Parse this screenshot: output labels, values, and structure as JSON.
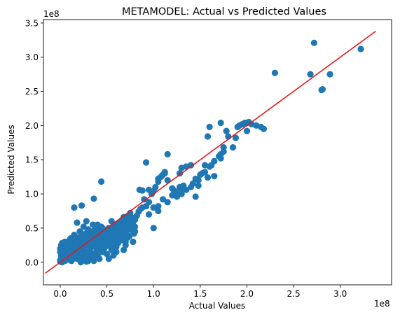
{
  "chart_data": {
    "type": "scatter",
    "title": "METAMODEL: Actual vs Predicted Values",
    "xlabel": "Actual Values",
    "ylabel": "Predicted Values",
    "x_offset_label": "1e8",
    "y_offset_label": "1e8",
    "xlim": [
      -0.18,
      3.55
    ],
    "ylim": [
      -0.33,
      3.55
    ],
    "x_ticks": [
      0.0,
      0.5,
      1.0,
      1.5,
      2.0,
      2.5,
      3.0
    ],
    "x_tick_labels": [
      "0.0",
      "0.5",
      "1.0",
      "1.5",
      "2.0",
      "2.5",
      "3.0"
    ],
    "y_ticks": [
      0.0,
      0.5,
      1.0,
      1.5,
      2.0,
      2.5,
      3.0,
      3.5
    ],
    "y_tick_labels": [
      "0.0",
      "0.5",
      "1.0",
      "1.5",
      "2.0",
      "2.5",
      "3.0",
      "3.5"
    ],
    "colors": {
      "points": "#1f77b4",
      "line": "#e31a1c"
    },
    "reference_line": {
      "x": [
        -0.16,
        3.38
      ],
      "y": [
        -0.16,
        3.38
      ]
    },
    "points": [
      [
        0.0,
        0.01
      ],
      [
        0.01,
        0.02
      ],
      [
        0.02,
        0.0
      ],
      [
        0.03,
        0.05
      ],
      [
        0.01,
        0.1
      ],
      [
        0.02,
        0.15
      ],
      [
        0.02,
        0.22
      ],
      [
        0.03,
        0.18
      ],
      [
        0.04,
        0.28
      ],
      [
        0.05,
        0.12
      ],
      [
        0.05,
        0.02
      ],
      [
        0.06,
        0.2
      ],
      [
        0.07,
        0.08
      ],
      [
        0.08,
        0.25
      ],
      [
        0.08,
        0.3
      ],
      [
        0.09,
        0.14
      ],
      [
        0.1,
        0.05
      ],
      [
        0.1,
        0.22
      ],
      [
        0.11,
        0.35
      ],
      [
        0.12,
        0.18
      ],
      [
        0.12,
        0.02
      ],
      [
        0.13,
        0.28
      ],
      [
        0.14,
        0.1
      ],
      [
        0.15,
        0.2
      ],
      [
        0.15,
        0.4
      ],
      [
        0.16,
        0.15
      ],
      [
        0.17,
        0.3
      ],
      [
        0.18,
        0.05
      ],
      [
        0.18,
        0.25
      ],
      [
        0.19,
        0.12
      ],
      [
        0.2,
        0.32
      ],
      [
        0.2,
        0.2
      ],
      [
        0.21,
        0.45
      ],
      [
        0.22,
        0.28
      ],
      [
        0.22,
        0.08
      ],
      [
        0.23,
        0.38
      ],
      [
        0.24,
        0.18
      ],
      [
        0.25,
        0.52
      ],
      [
        0.25,
        0.3
      ],
      [
        0.26,
        0.1
      ],
      [
        0.27,
        0.42
      ],
      [
        0.28,
        0.24
      ],
      [
        0.28,
        0.35
      ],
      [
        0.29,
        0.15
      ],
      [
        0.3,
        0.48
      ],
      [
        0.3,
        0.28
      ],
      [
        0.31,
        0.05
      ],
      [
        0.32,
        0.38
      ],
      [
        0.33,
        0.22
      ],
      [
        0.34,
        0.45
      ],
      [
        0.34,
        0.3
      ],
      [
        0.35,
        0.12
      ],
      [
        0.36,
        0.35
      ],
      [
        0.37,
        0.25
      ],
      [
        0.38,
        0.42
      ],
      [
        0.38,
        0.32
      ],
      [
        0.39,
        0.18
      ],
      [
        0.4,
        0.38
      ],
      [
        0.41,
        0.28
      ],
      [
        0.42,
        0.45
      ],
      [
        0.43,
        0.35
      ],
      [
        0.44,
        0.22
      ],
      [
        0.45,
        0.4
      ],
      [
        0.46,
        0.3
      ],
      [
        0.47,
        0.48
      ],
      [
        0.48,
        0.38
      ],
      [
        0.49,
        0.25
      ],
      [
        0.5,
        0.42
      ],
      [
        0.51,
        0.32
      ],
      [
        0.52,
        0.5
      ],
      [
        0.53,
        0.4
      ],
      [
        0.54,
        0.28
      ],
      [
        0.55,
        0.45
      ],
      [
        0.56,
        0.35
      ],
      [
        0.57,
        0.52
      ],
      [
        0.58,
        0.42
      ],
      [
        0.59,
        0.3
      ],
      [
        0.6,
        0.48
      ],
      [
        0.61,
        0.38
      ],
      [
        0.62,
        0.55
      ],
      [
        0.63,
        0.45
      ],
      [
        0.64,
        0.32
      ],
      [
        0.65,
        0.5
      ],
      [
        0.66,
        0.4
      ],
      [
        0.67,
        0.58
      ],
      [
        0.68,
        0.48
      ],
      [
        0.69,
        0.35
      ],
      [
        0.7,
        0.55
      ],
      [
        0.71,
        0.45
      ],
      [
        0.72,
        0.6
      ],
      [
        0.73,
        0.5
      ],
      [
        0.74,
        0.38
      ],
      [
        0.75,
        0.58
      ],
      [
        0.76,
        0.48
      ],
      [
        0.77,
        0.65
      ],
      [
        0.78,
        0.55
      ],
      [
        0.79,
        0.42
      ],
      [
        0.8,
        0.62
      ],
      [
        0.01,
        0.05
      ],
      [
        0.02,
        0.08
      ],
      [
        0.03,
        0.12
      ],
      [
        0.04,
        0.06
      ],
      [
        0.05,
        0.16
      ],
      [
        0.06,
        0.1
      ],
      [
        0.07,
        0.22
      ],
      [
        0.08,
        0.04
      ],
      [
        0.09,
        0.18
      ],
      [
        0.1,
        0.12
      ],
      [
        0.11,
        0.26
      ],
      [
        0.12,
        0.08
      ],
      [
        0.13,
        0.2
      ],
      [
        0.14,
        0.32
      ],
      [
        0.15,
        0.06
      ],
      [
        0.16,
        0.24
      ],
      [
        0.17,
        0.14
      ],
      [
        0.18,
        0.36
      ],
      [
        0.19,
        0.22
      ],
      [
        0.2,
        0.08
      ],
      [
        0.21,
        0.3
      ],
      [
        0.22,
        0.18
      ],
      [
        0.0,
        0.03
      ],
      [
        0.01,
        0.13
      ],
      [
        0.02,
        0.05
      ],
      [
        0.03,
        0.24
      ],
      [
        0.04,
        0.16
      ],
      [
        0.05,
        0.06
      ],
      [
        0.06,
        0.28
      ],
      [
        0.07,
        0.16
      ],
      [
        0.08,
        0.1
      ],
      [
        0.09,
        0.26
      ],
      [
        0.1,
        0.3
      ],
      [
        0.11,
        0.16
      ],
      [
        0.13,
        0.12
      ],
      [
        0.14,
        0.24
      ],
      [
        0.16,
        0.34
      ],
      [
        0.17,
        0.22
      ],
      [
        0.19,
        0.3
      ],
      [
        0.21,
        0.16
      ],
      [
        0.23,
        0.26
      ],
      [
        0.24,
        0.36
      ],
      [
        0.26,
        0.22
      ],
      [
        0.27,
        0.32
      ],
      [
        0.29,
        0.26
      ],
      [
        0.31,
        0.4
      ],
      [
        0.32,
        0.3
      ],
      [
        0.33,
        0.14
      ],
      [
        0.35,
        0.28
      ],
      [
        0.36,
        0.46
      ],
      [
        0.37,
        0.36
      ],
      [
        0.39,
        0.26
      ],
      [
        0.4,
        0.5
      ],
      [
        0.41,
        0.2
      ],
      [
        0.43,
        0.28
      ],
      [
        0.44,
        0.52
      ],
      [
        0.45,
        0.32
      ],
      [
        0.46,
        0.4
      ],
      [
        0.47,
        0.2
      ],
      [
        0.48,
        0.3
      ],
      [
        0.5,
        0.36
      ],
      [
        0.51,
        0.24
      ],
      [
        0.52,
        0.44
      ],
      [
        0.53,
        0.32
      ],
      [
        0.55,
        0.38
      ],
      [
        0.56,
        0.26
      ],
      [
        0.57,
        0.44
      ],
      [
        0.58,
        0.34
      ],
      [
        0.6,
        0.4
      ],
      [
        0.61,
        0.56
      ],
      [
        0.63,
        0.52
      ],
      [
        0.64,
        0.42
      ],
      [
        0.65,
        0.6
      ],
      [
        0.66,
        0.46
      ],
      [
        0.68,
        0.66
      ],
      [
        0.69,
        0.52
      ],
      [
        0.7,
        0.44
      ],
      [
        0.71,
        0.62
      ],
      [
        0.73,
        0.68
      ],
      [
        0.74,
        0.56
      ],
      [
        0.75,
        0.72
      ],
      [
        0.76,
        0.6
      ],
      [
        0.15,
        0.8
      ],
      [
        0.23,
        0.83
      ],
      [
        0.36,
        0.93
      ],
      [
        0.44,
        1.18
      ],
      [
        0.18,
        0.58
      ],
      [
        0.28,
        0.6
      ],
      [
        0.35,
        0.55
      ],
      [
        0.4,
        0.55
      ],
      [
        0.45,
        0.5
      ],
      [
        0.55,
        0.6
      ],
      [
        0.25,
        0.05
      ],
      [
        0.3,
        0.08
      ],
      [
        0.35,
        0.06
      ],
      [
        0.4,
        0.1
      ],
      [
        0.45,
        0.15
      ],
      [
        0.5,
        0.12
      ],
      [
        0.55,
        0.18
      ],
      [
        0.6,
        0.22
      ],
      [
        0.62,
        0.28
      ],
      [
        0.65,
        0.32
      ],
      [
        0.7,
        0.3
      ],
      [
        0.72,
        0.36
      ],
      [
        0.75,
        0.5
      ],
      [
        0.78,
        0.45
      ],
      [
        0.8,
        0.52
      ],
      [
        0.82,
        0.68
      ],
      [
        0.84,
        0.74
      ],
      [
        0.86,
        0.78
      ],
      [
        0.88,
        0.8
      ],
      [
        0.9,
        0.92
      ],
      [
        0.92,
        0.82
      ],
      [
        0.95,
        0.88
      ],
      [
        0.98,
        1.0
      ],
      [
        1.0,
        1.04
      ],
      [
        1.02,
        1.1
      ],
      [
        1.05,
        1.18
      ],
      [
        1.08,
        1.25
      ],
      [
        1.1,
        1.28
      ],
      [
        1.12,
        1.3
      ],
      [
        1.15,
        1.2
      ],
      [
        1.2,
        1.08
      ],
      [
        1.22,
        1.05
      ],
      [
        1.25,
        1.02
      ],
      [
        1.28,
        1.1
      ],
      [
        1.3,
        1.08
      ],
      [
        1.32,
        1.12
      ],
      [
        1.35,
        1.06
      ],
      [
        1.4,
        1.1
      ],
      [
        1.42,
        1.15
      ],
      [
        1.45,
        1.22
      ],
      [
        1.48,
        1.2
      ],
      [
        1.5,
        1.28
      ],
      [
        1.55,
        1.32
      ],
      [
        1.58,
        1.24
      ],
      [
        1.6,
        1.4
      ],
      [
        1.62,
        1.42
      ],
      [
        1.65,
        1.48
      ],
      [
        1.7,
        1.55
      ],
      [
        1.72,
        1.58
      ],
      [
        1.75,
        1.68
      ],
      [
        0.88,
        1.05
      ],
      [
        0.95,
        1.06
      ],
      [
        1.0,
        0.5
      ],
      [
        1.05,
        0.75
      ],
      [
        1.1,
        0.92
      ],
      [
        1.15,
        0.88
      ],
      [
        1.2,
        0.98
      ],
      [
        1.25,
        0.96
      ],
      [
        1.3,
        1.0
      ],
      [
        0.85,
        1.06
      ],
      [
        0.92,
        1.46
      ],
      [
        1.05,
        1.22
      ],
      [
        1.12,
        1.32
      ],
      [
        1.15,
        1.58
      ],
      [
        1.28,
        1.3
      ],
      [
        1.3,
        1.38
      ],
      [
        1.35,
        1.4
      ],
      [
        1.4,
        1.42
      ],
      [
        1.45,
        0.96
      ],
      [
        1.48,
        1.12
      ],
      [
        1.52,
        1.3
      ],
      [
        1.55,
        1.42
      ],
      [
        1.58,
        1.84
      ],
      [
        1.6,
        1.98
      ],
      [
        1.65,
        1.26
      ],
      [
        1.72,
        1.52
      ],
      [
        1.75,
        1.62
      ],
      [
        1.78,
        1.92
      ],
      [
        1.8,
        1.84
      ],
      [
        1.85,
        1.68
      ],
      [
        1.88,
        1.82
      ],
      [
        1.9,
        1.98
      ],
      [
        1.92,
        2.0
      ],
      [
        1.95,
        2.02
      ],
      [
        1.98,
        2.04
      ],
      [
        2.0,
        2.04
      ],
      [
        2.02,
        2.05
      ],
      [
        2.05,
        2.02
      ],
      [
        2.1,
        2.0
      ],
      [
        2.15,
        1.98
      ],
      [
        2.18,
        1.95
      ],
      [
        2.0,
        1.92
      ],
      [
        2.3,
        2.77
      ],
      [
        2.68,
        2.75
      ],
      [
        2.72,
        3.21
      ],
      [
        2.8,
        2.52
      ],
      [
        2.81,
        2.53
      ],
      [
        2.89,
        2.75
      ],
      [
        3.22,
        3.12
      ],
      [
        1.72,
        2.04
      ],
      [
        0.95,
        0.7
      ],
      [
        1.0,
        0.8
      ],
      [
        1.05,
        0.82
      ],
      [
        0.8,
        0.45
      ],
      [
        0.78,
        0.3
      ],
      [
        0.7,
        0.25
      ],
      [
        0.68,
        0.18
      ],
      [
        0.6,
        0.15
      ],
      [
        0.57,
        0.1
      ],
      [
        0.52,
        0.05
      ],
      [
        0.3,
        0.02
      ],
      [
        0.22,
        0.0
      ],
      [
        0.28,
        0.01
      ],
      [
        0.36,
        0.02
      ],
      [
        0.42,
        0.05
      ],
      [
        0.05,
        0.3
      ],
      [
        0.02,
        0.28
      ],
      [
        0.0,
        0.2
      ],
      [
        0.0,
        0.15
      ],
      [
        0.01,
        0.25
      ]
    ]
  }
}
